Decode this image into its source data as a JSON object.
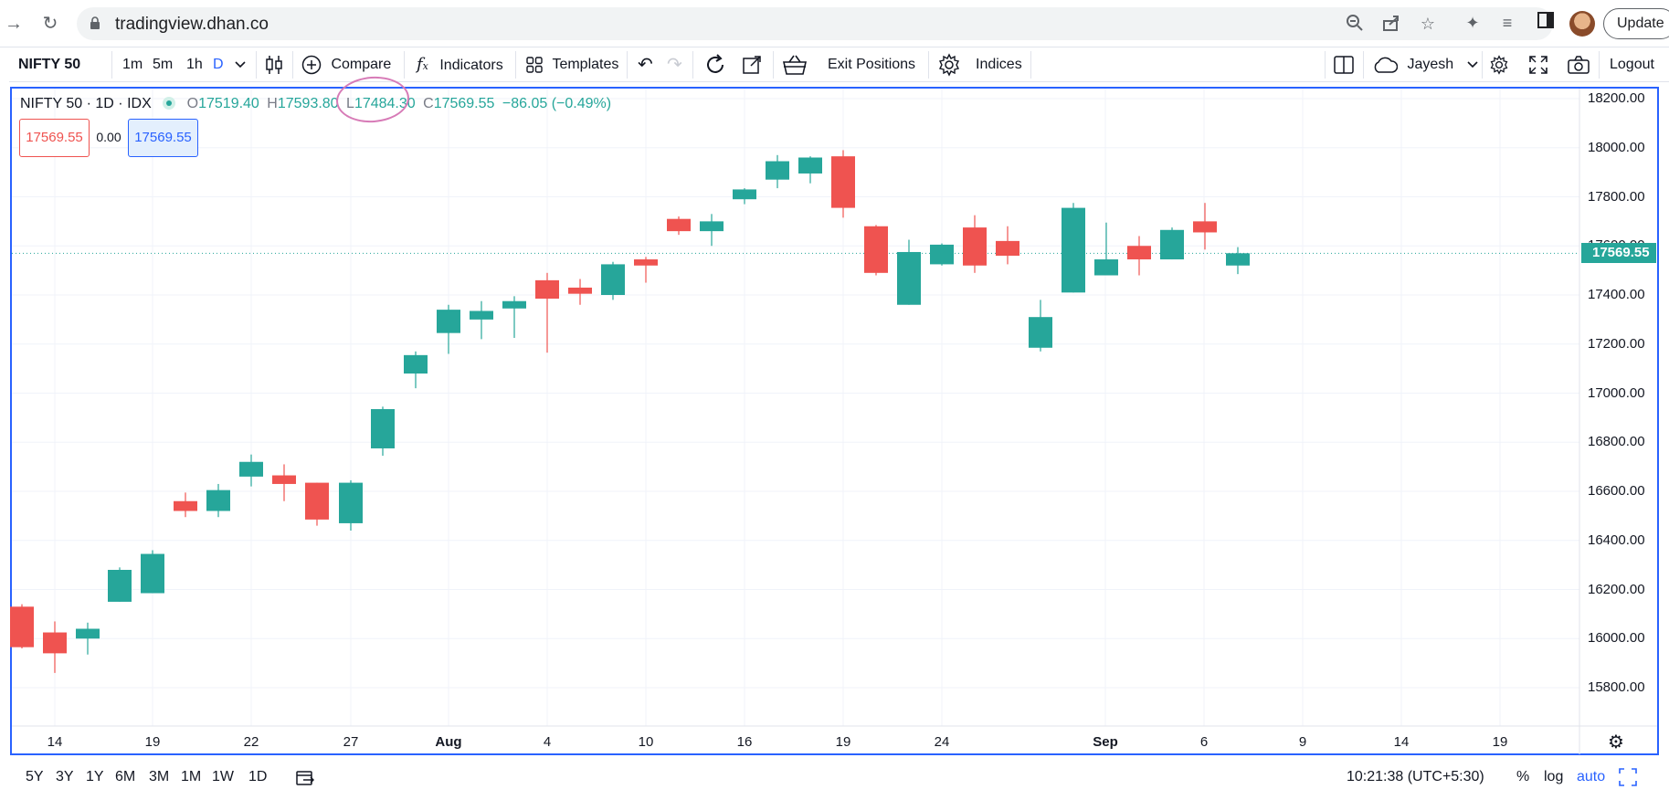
{
  "browser": {
    "url": "tradingview.dhan.co",
    "update_label": "Update",
    "icons": [
      "forward-icon",
      "reload-icon",
      "lock-icon",
      "zoom-icon",
      "share-icon",
      "bookmark-star-icon",
      "extensions-icon",
      "media-icon",
      "side-panel-icon"
    ]
  },
  "toolbar": {
    "symbol": "NIFTY 50",
    "intervals": [
      "1m",
      "5m",
      "1h",
      "D"
    ],
    "active_interval": "D",
    "compare_label": "Compare",
    "indicators_label": "Indicators",
    "templates_label": "Templates",
    "exit_positions_label": "Exit Positions",
    "indices_label": "Indices",
    "user_label": "Jayesh",
    "logout_label": "Logout"
  },
  "legend": {
    "title": "NIFTY 50 · 1D · IDX",
    "o_label": "O",
    "o_value": "17519.40",
    "h_label": "H",
    "h_value": "17593.80",
    "l_label": "L",
    "l_value": "17484.30",
    "c_label": "C",
    "c_value": "17569.55",
    "change": "−86.05 (−0.49%)"
  },
  "trade_box": {
    "sell": "17569.55",
    "spread": "0.00",
    "buy": "17569.55"
  },
  "colors": {
    "up": "#26a69a",
    "down": "#ef5350",
    "accent": "#2962ff"
  },
  "chart_data": {
    "type": "candlestick",
    "last_price": "17569.55",
    "y_ticks": [
      "18200.00",
      "18000.00",
      "17800.00",
      "17600.00",
      "17400.00",
      "17200.00",
      "17000.00",
      "16800.00",
      "16600.00",
      "16400.00",
      "16200.00",
      "16000.00",
      "15800.00"
    ],
    "ylim": [
      15700,
      18250
    ],
    "x_ticks": [
      {
        "label": "14",
        "bold": false
      },
      {
        "label": "19",
        "bold": false
      },
      {
        "label": "22",
        "bold": false
      },
      {
        "label": "27",
        "bold": false
      },
      {
        "label": "Aug",
        "bold": true
      },
      {
        "label": "4",
        "bold": false
      },
      {
        "label": "10",
        "bold": false
      },
      {
        "label": "16",
        "bold": false
      },
      {
        "label": "19",
        "bold": false
      },
      {
        "label": "24",
        "bold": false
      },
      {
        "label": "Sep",
        "bold": true
      },
      {
        "label": "6",
        "bold": false
      },
      {
        "label": "9",
        "bold": false
      },
      {
        "label": "14",
        "bold": false
      },
      {
        "label": "19",
        "bold": false
      }
    ],
    "candles": [
      {
        "o": 16130,
        "h": 16140,
        "l": 15960,
        "c": 15965
      },
      {
        "o": 16025,
        "h": 16070,
        "l": 15860,
        "c": 15940
      },
      {
        "o": 16000,
        "h": 16065,
        "l": 15935,
        "c": 16040
      },
      {
        "o": 16150,
        "h": 16290,
        "l": 16150,
        "c": 16280
      },
      {
        "o": 16185,
        "h": 16360,
        "l": 16185,
        "c": 16345
      },
      {
        "o": 16560,
        "h": 16595,
        "l": 16495,
        "c": 16520
      },
      {
        "o": 16520,
        "h": 16630,
        "l": 16495,
        "c": 16605
      },
      {
        "o": 16660,
        "h": 16750,
        "l": 16620,
        "c": 16720
      },
      {
        "o": 16665,
        "h": 16710,
        "l": 16560,
        "c": 16630
      },
      {
        "o": 16635,
        "h": 16635,
        "l": 16460,
        "c": 16485
      },
      {
        "o": 16470,
        "h": 16645,
        "l": 16440,
        "c": 16635
      },
      {
        "o": 16775,
        "h": 16945,
        "l": 16745,
        "c": 16935
      },
      {
        "o": 17080,
        "h": 17170,
        "l": 17020,
        "c": 17155
      },
      {
        "o": 17245,
        "h": 17360,
        "l": 17160,
        "c": 17340
      },
      {
        "o": 17300,
        "h": 17375,
        "l": 17220,
        "c": 17335
      },
      {
        "o": 17345,
        "h": 17395,
        "l": 17225,
        "c": 17375
      },
      {
        "o": 17460,
        "h": 17490,
        "l": 17165,
        "c": 17385
      },
      {
        "o": 17430,
        "h": 17465,
        "l": 17360,
        "c": 17405
      },
      {
        "o": 17400,
        "h": 17535,
        "l": 17380,
        "c": 17525
      },
      {
        "o": 17545,
        "h": 17555,
        "l": 17450,
        "c": 17520
      },
      {
        "o": 17710,
        "h": 17720,
        "l": 17645,
        "c": 17660
      },
      {
        "o": 17660,
        "h": 17730,
        "l": 17600,
        "c": 17700
      },
      {
        "o": 17790,
        "h": 17835,
        "l": 17770,
        "c": 17830
      },
      {
        "o": 17870,
        "h": 17970,
        "l": 17835,
        "c": 17945
      },
      {
        "o": 17895,
        "h": 17965,
        "l": 17855,
        "c": 17960
      },
      {
        "o": 17965,
        "h": 17990,
        "l": 17715,
        "c": 17755
      },
      {
        "o": 17680,
        "h": 17685,
        "l": 17480,
        "c": 17490
      },
      {
        "o": 17360,
        "h": 17625,
        "l": 17360,
        "c": 17575
      },
      {
        "o": 17525,
        "h": 17610,
        "l": 17520,
        "c": 17605
      },
      {
        "o": 17675,
        "h": 17725,
        "l": 17490,
        "c": 17520
      },
      {
        "o": 17620,
        "h": 17680,
        "l": 17525,
        "c": 17560
      },
      {
        "o": 17185,
        "h": 17380,
        "l": 17170,
        "c": 17310
      },
      {
        "o": 17410,
        "h": 17775,
        "l": 17410,
        "c": 17755
      },
      {
        "o": 17480,
        "h": 17695,
        "l": 17480,
        "c": 17545
      },
      {
        "o": 17600,
        "h": 17640,
        "l": 17480,
        "c": 17545
      },
      {
        "o": 17545,
        "h": 17675,
        "l": 17545,
        "c": 17665
      },
      {
        "o": 17700,
        "h": 17775,
        "l": 17585,
        "c": 17655
      },
      {
        "o": 17520,
        "h": 17595,
        "l": 17485,
        "c": 17570
      }
    ]
  },
  "bottombar": {
    "ranges": [
      "5Y",
      "3Y",
      "1Y",
      "6M",
      "3M",
      "1M",
      "1W",
      "1D"
    ],
    "time": "10:21:38 (UTC+5:30)",
    "percent": "%",
    "log": "log",
    "auto": "auto"
  }
}
